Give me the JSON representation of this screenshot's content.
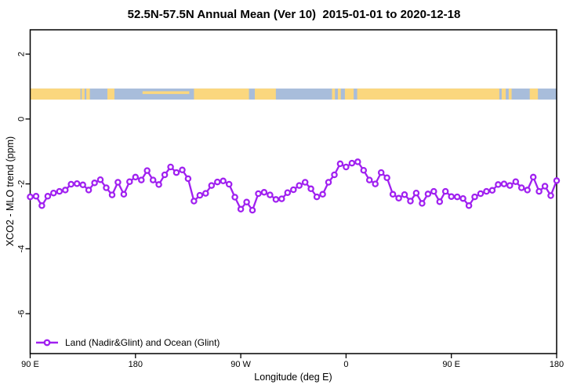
{
  "title": "52.5N-57.5N Annual Mean (Ver 10)  2015-01-01 to 2020-12-18",
  "legend": {
    "label": "Land (Nadir&Glint) and Ocean (Glint)",
    "marker": "open-circle",
    "color": "#A020F0"
  },
  "colors": {
    "series": "#A020F0",
    "marker_fill": "#FFFFFF",
    "land": "#FBD77E",
    "ocean": "#A8BDDB",
    "axis": "#000000",
    "background": "#FFFFFF"
  },
  "chart_data": {
    "type": "line",
    "title": "52.5N-57.5N Annual Mean (Ver 10)  2015-01-01 to 2020-12-18",
    "xlabel": "Longitude (deg E)",
    "ylabel": "XCO2 - MLO trend (ppm)",
    "xlim": [
      90,
      540
    ],
    "ylim": [
      -7.23,
      2.75
    ],
    "grid": false,
    "legend_position": "bottom-left-inside",
    "x_ticks": {
      "positions": [
        90,
        180,
        270,
        360,
        450,
        540
      ],
      "labels": [
        "90 E",
        "180",
        "90 W",
        "0",
        "90 E",
        "180"
      ]
    },
    "y_ticks": {
      "positions": [
        2,
        0,
        -2,
        -4,
        -6
      ],
      "labels": [
        "2",
        "0",
        "-2",
        "-4",
        "-6"
      ]
    },
    "series": [
      {
        "name": "Land (Nadir&Glint) and Ocean (Glint)",
        "color": "#A020F0",
        "marker": "open-circle",
        "x": [
          90,
          95,
          100,
          105,
          110,
          115,
          120,
          125,
          130,
          135,
          140,
          145,
          150,
          155,
          160,
          165,
          170,
          175,
          180,
          185,
          190,
          195,
          200,
          205,
          210,
          215,
          220,
          225,
          230,
          235,
          240,
          245,
          250,
          255,
          260,
          265,
          270,
          275,
          280,
          285,
          290,
          295,
          300,
          305,
          310,
          315,
          320,
          325,
          330,
          335,
          340,
          345,
          350,
          355,
          360,
          365,
          370,
          375,
          380,
          385,
          390,
          395,
          400,
          405,
          410,
          415,
          420,
          425,
          430,
          435,
          440,
          445,
          450,
          455,
          460,
          465,
          470,
          475,
          480,
          485,
          490,
          495,
          500,
          505,
          510,
          515,
          520,
          525,
          530,
          535,
          540
        ],
        "y": [
          -2.4,
          -2.38,
          -2.67,
          -2.38,
          -2.28,
          -2.23,
          -2.19,
          -2.01,
          -1.99,
          -2.03,
          -2.19,
          -1.97,
          -1.87,
          -2.12,
          -2.34,
          -1.95,
          -2.32,
          -1.93,
          -1.79,
          -1.88,
          -1.59,
          -1.88,
          -2.02,
          -1.72,
          -1.48,
          -1.65,
          -1.57,
          -1.84,
          -2.53,
          -2.35,
          -2.29,
          -2.05,
          -1.94,
          -1.91,
          -2.01,
          -2.41,
          -2.78,
          -2.56,
          -2.81,
          -2.3,
          -2.26,
          -2.34,
          -2.48,
          -2.46,
          -2.27,
          -2.18,
          -2.05,
          -1.95,
          -2.15,
          -2.4,
          -2.32,
          -1.95,
          -1.72,
          -1.38,
          -1.48,
          -1.36,
          -1.32,
          -1.58,
          -1.88,
          -2.0,
          -1.65,
          -1.81,
          -2.32,
          -2.44,
          -2.33,
          -2.53,
          -2.28,
          -2.6,
          -2.31,
          -2.23,
          -2.55,
          -2.23,
          -2.39,
          -2.4,
          -2.45,
          -2.67,
          -2.4,
          -2.3,
          -2.23,
          -2.2,
          -2.02,
          -2.0,
          -2.05,
          -1.93,
          -2.12,
          -2.19,
          -1.79,
          -2.23,
          -2.07,
          -2.36,
          -1.9
        ]
      }
    ],
    "land_ocean_band": {
      "description": "land vs ocean map strip across longitudes at 52.5N-57.5N",
      "y_range_ppm": [
        0.6,
        0.94
      ],
      "land_color": "#FBD77E",
      "ocean_color": "#A8BDDB",
      "land_segments_degE": [
        [
          90,
          133
        ],
        [
          134,
          136.5
        ],
        [
          138,
          141
        ],
        [
          156,
          162
        ],
        [
          230,
          277
        ],
        [
          282,
          300
        ],
        [
          348,
          350.5
        ],
        [
          353,
          355.5
        ],
        [
          359,
          366.5
        ],
        [
          369.5,
          491
        ],
        [
          493,
          496.5
        ],
        [
          499,
          501.5
        ],
        [
          517,
          524
        ]
      ],
      "aleutian_sliver_degE": [
        186,
        226
      ]
    }
  }
}
